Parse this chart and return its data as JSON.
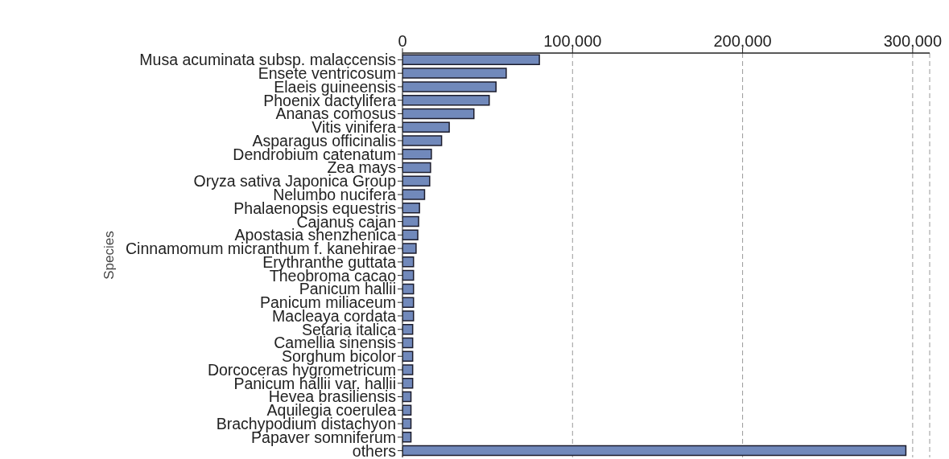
{
  "chart_data": {
    "type": "bar",
    "orientation": "horizontal",
    "ylabel": "Species",
    "categories": [
      "Musa acuminata subsp. malaccensis",
      "Ensete ventricosum",
      "Elaeis guineensis",
      "Phoenix dactylifera",
      "Ananas comosus",
      "Vitis vinifera",
      "Asparagus officinalis",
      "Dendrobium catenatum",
      "Zea mays",
      "Oryza sativa Japonica Group",
      "Nelumbo nucifera",
      "Phalaenopsis equestris",
      "Cajanus cajan",
      "Apostasia shenzhenica",
      "Cinnamomum micranthum f. kanehirae",
      "Erythranthe guttata",
      "Theobroma cacao",
      "Panicum hallii",
      "Panicum miliaceum",
      "Macleaya cordata",
      "Setaria italica",
      "Camellia sinensis",
      "Sorghum bicolor",
      "Dorcoceras hygrometricum",
      "Panicum hallii var. hallii",
      "Hevea brasiliensis",
      "Aquilegia coerulea",
      "Brachypodium distachyon",
      "Papaver somniferum",
      "others"
    ],
    "values": [
      80500,
      61000,
      55000,
      51000,
      42000,
      27500,
      23000,
      17000,
      16500,
      16000,
      13000,
      10000,
      9500,
      9000,
      8000,
      6500,
      6500,
      6500,
      6500,
      6500,
      6000,
      6000,
      6000,
      6000,
      6000,
      5000,
      5000,
      5000,
      5000,
      296000
    ],
    "color": "#7189bb",
    "xlim": [
      0,
      310000
    ],
    "xticks": [
      {
        "value": 0,
        "label": "0"
      },
      {
        "value": 100000,
        "label": "100,000"
      },
      {
        "value": 200000,
        "label": "200,000"
      },
      {
        "value": 300000,
        "label": "300,000"
      }
    ],
    "grid": "x"
  }
}
